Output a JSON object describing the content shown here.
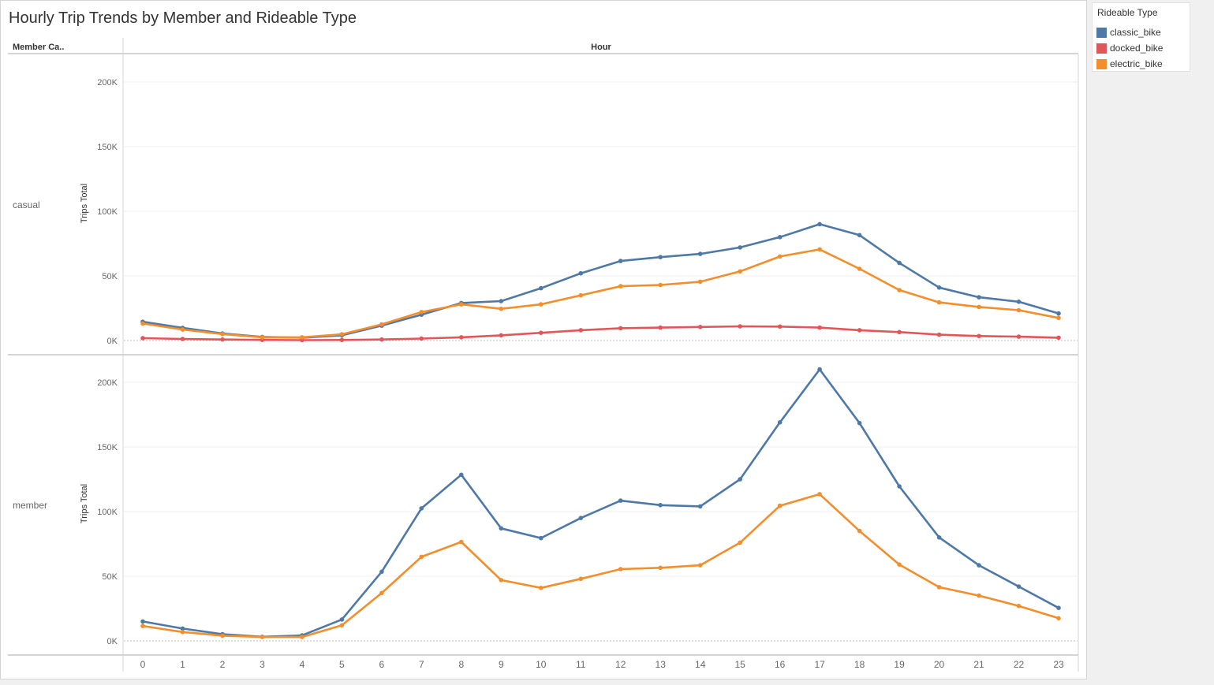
{
  "title": "Hourly Trip Trends by Member and Rideable Type",
  "legend": {
    "title": "Rideable Type",
    "items": [
      {
        "label": "classic_bike",
        "color": "#4e79a7"
      },
      {
        "label": "docked_bike",
        "color": "#e15759"
      },
      {
        "label": "electric_bike",
        "color": "#f28e2b"
      }
    ]
  },
  "headers": {
    "row_field": "Member Ca..",
    "column_field": "Hour"
  },
  "chart_data": {
    "type": "line",
    "title": "Hourly Trip Trends by Member and Rideable Type",
    "xlabel": "Hour",
    "ylabel": "Trips Total",
    "x": [
      0,
      1,
      2,
      3,
      4,
      5,
      6,
      7,
      8,
      9,
      10,
      11,
      12,
      13,
      14,
      15,
      16,
      17,
      18,
      19,
      20,
      21,
      22,
      23
    ],
    "ylim": [
      0,
      220000
    ],
    "yticks": [
      0,
      50000,
      100000,
      150000,
      200000
    ],
    "ytick_labels": [
      "0K",
      "50K",
      "100K",
      "150K",
      "200K"
    ],
    "panels": [
      {
        "name": "casual",
        "series": [
          {
            "name": "classic_bike",
            "color": "#4e79a7",
            "values": [
              14500,
              9800,
              5500,
              2800,
              2200,
              4000,
              11500,
              20000,
              29000,
              30500,
              40500,
              52000,
              61500,
              64500,
              67000,
              72000,
              80000,
              90000,
              81500,
              60000,
              41000,
              33500,
              30000,
              21000
            ]
          },
          {
            "name": "docked_bike",
            "color": "#e15759",
            "values": [
              1800,
              1200,
              800,
              500,
              300,
              400,
              800,
              1500,
              2500,
              4000,
              6000,
              8000,
              9500,
              10000,
              10500,
              11000,
              10800,
              10000,
              8000,
              6500,
              4500,
              3500,
              3000,
              2200
            ]
          },
          {
            "name": "electric_bike",
            "color": "#f28e2b",
            "values": [
              13200,
              8500,
              5000,
              2500,
              2500,
              4800,
              12500,
              22000,
              28000,
              24500,
              28000,
              35000,
              42000,
              43000,
              45500,
              53500,
              65000,
              70500,
              55500,
              39000,
              29500,
              26000,
              23500,
              17500
            ]
          }
        ]
      },
      {
        "name": "member",
        "series": [
          {
            "name": "classic_bike",
            "color": "#4e79a7",
            "values": [
              15000,
              9500,
              5200,
              3200,
              4200,
              16500,
              53500,
              102500,
              128500,
              87000,
              79500,
              95000,
              108500,
              105000,
              104000,
              125000,
              169000,
              210000,
              168500,
              119500,
              80000,
              58500,
              42000,
              25500
            ]
          },
          {
            "name": "electric_bike",
            "color": "#f28e2b",
            "values": [
              11500,
              6800,
              4000,
              3000,
              3000,
              12000,
              37000,
              65000,
              76500,
              47000,
              41000,
              48000,
              55500,
              56500,
              58500,
              76000,
              104500,
              113500,
              85000,
              59000,
              41500,
              35000,
              27000,
              17500
            ]
          }
        ]
      }
    ]
  }
}
